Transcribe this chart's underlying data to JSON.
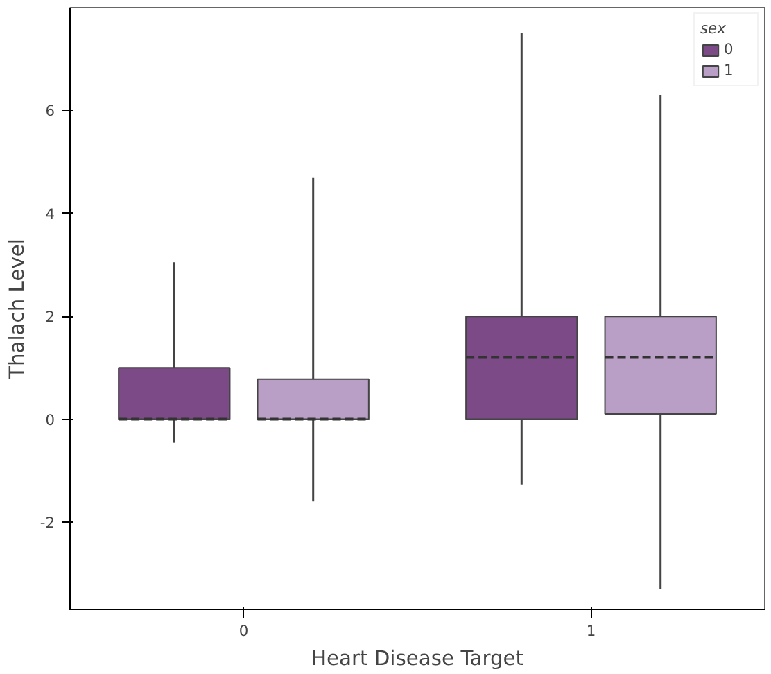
{
  "chart_data": {
    "type": "box",
    "xlabel": "Heart Disease Target",
    "ylabel": "Thalach Level",
    "legend_title": "sex",
    "categories": [
      "0",
      "1"
    ],
    "series": [
      {
        "name": "0",
        "color": "#7b4a87",
        "boxes": [
          {
            "low": -0.46,
            "q1": 0,
            "median": 0,
            "q3": 1.0,
            "high": 3.05
          },
          {
            "low": -1.27,
            "q1": 0,
            "median": 1.2,
            "q3": 2.0,
            "high": 7.5
          }
        ]
      },
      {
        "name": "1",
        "color": "#b99fc6",
        "boxes": [
          {
            "low": -1.6,
            "q1": 0,
            "median": 0,
            "q3": 0.78,
            "high": 4.7
          },
          {
            "low": -3.3,
            "q1": 0.1,
            "median": 1.2,
            "q3": 2.0,
            "high": 6.3
          }
        ]
      }
    ],
    "ylim": [
      -3.7,
      8.0
    ],
    "yticks": [
      -2,
      0,
      2,
      4,
      6
    ],
    "legend": "top right",
    "grid": false
  }
}
